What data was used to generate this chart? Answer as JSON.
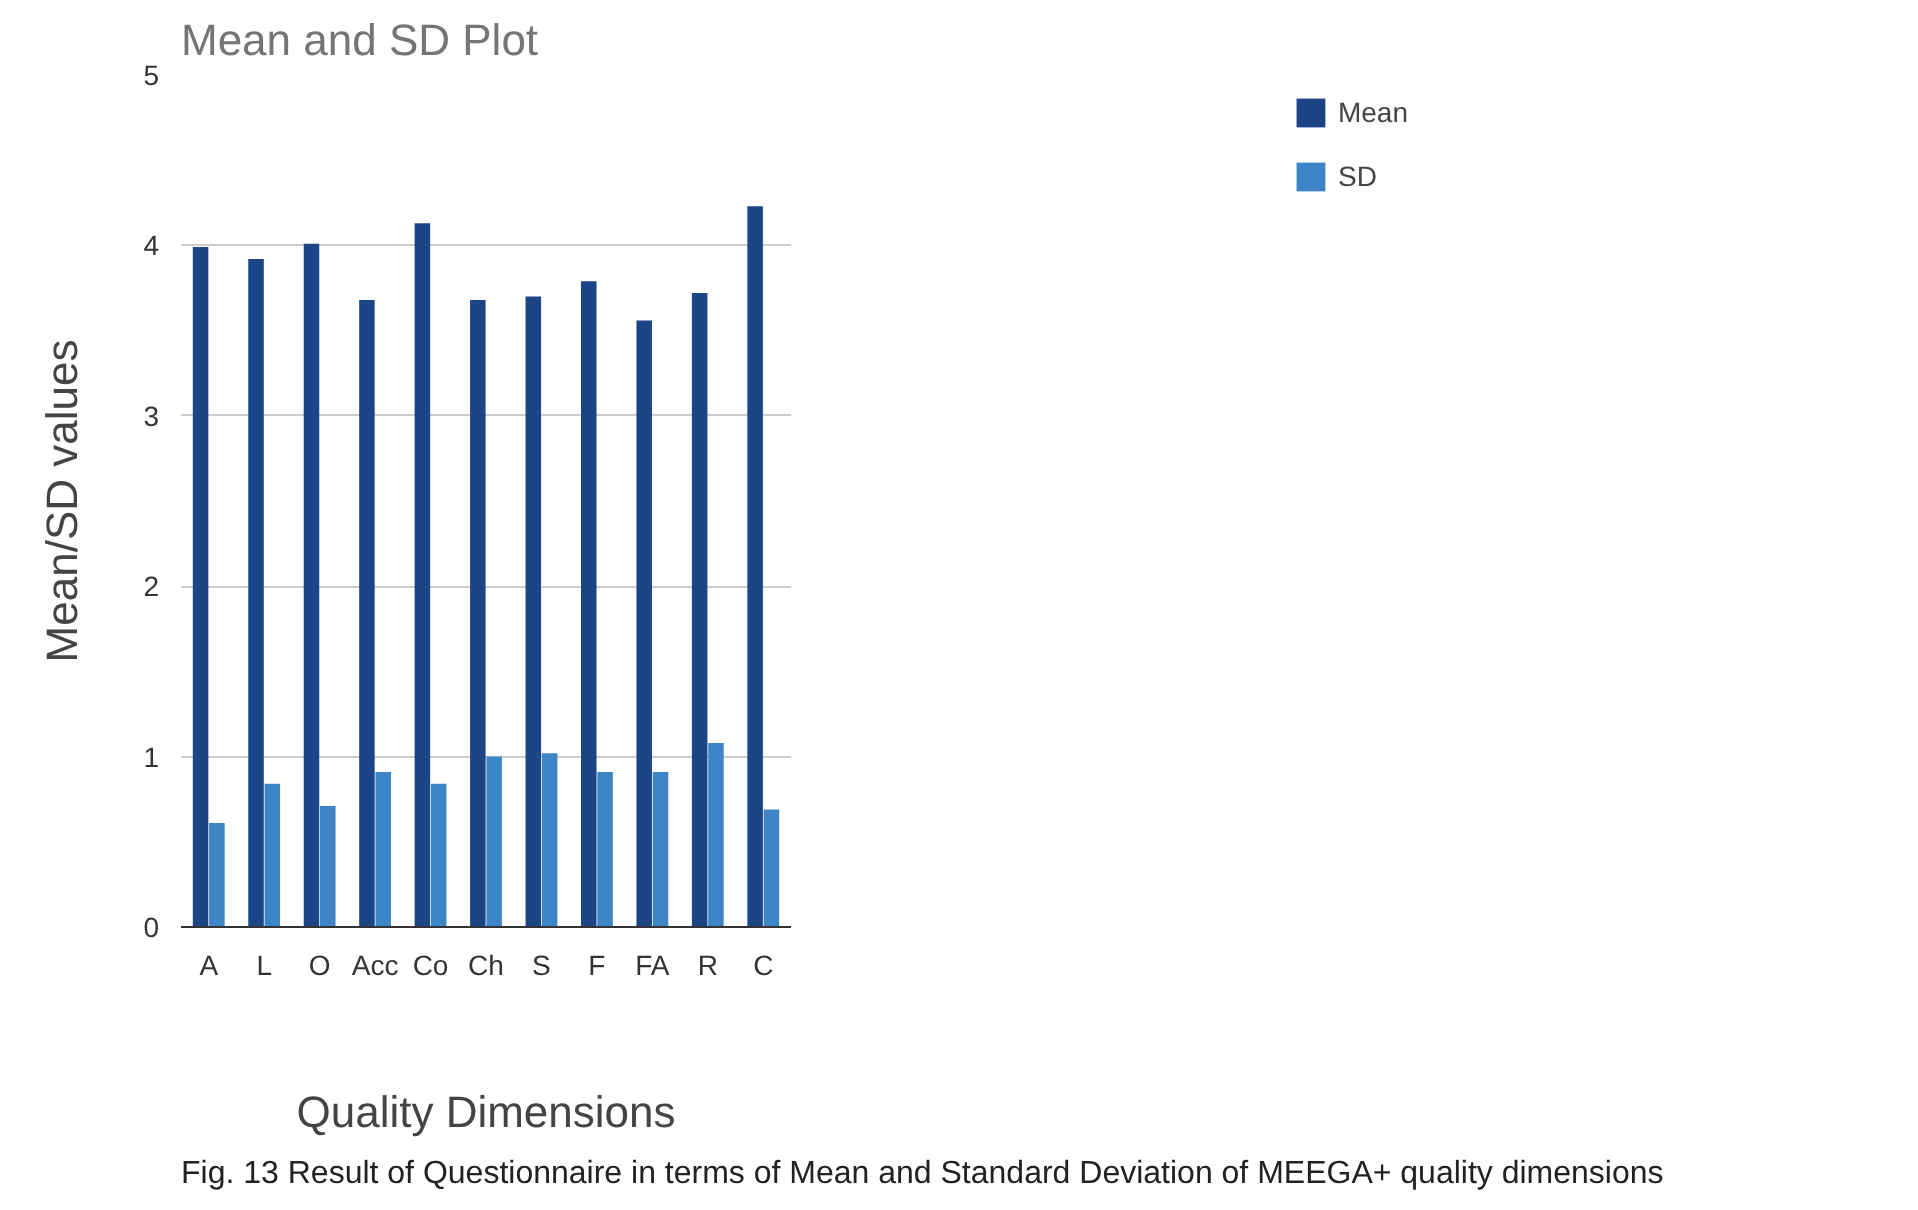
{
  "chart_data": {
    "type": "bar",
    "title": "Mean and SD Plot",
    "xlabel": "Quality Dimensions",
    "ylabel": "Mean/SD values",
    "categories": [
      "A",
      "L",
      "O",
      "Acc",
      "Co",
      "Ch",
      "S",
      "F",
      "FA",
      "R",
      "C"
    ],
    "series": [
      {
        "name": "Mean",
        "color": "#1c4587",
        "values": [
          3.99,
          3.92,
          4.01,
          3.68,
          4.13,
          3.68,
          3.7,
          3.79,
          3.56,
          3.72,
          4.23
        ]
      },
      {
        "name": "SD",
        "color": "#3d85c6",
        "values": [
          0.61,
          0.84,
          0.71,
          0.91,
          0.84,
          1.0,
          1.02,
          0.91,
          0.91,
          1.08,
          0.69
        ]
      }
    ],
    "ylim": [
      0,
      5
    ],
    "yticks": [
      0,
      1,
      2,
      3,
      4,
      5
    ],
    "grid": "y",
    "legend": "top right",
    "annotations": [
      "Fig. 13 Result of Questionnaire in terms of Mean and Standard Deviation of MEEGA+ quality dimensions"
    ]
  }
}
